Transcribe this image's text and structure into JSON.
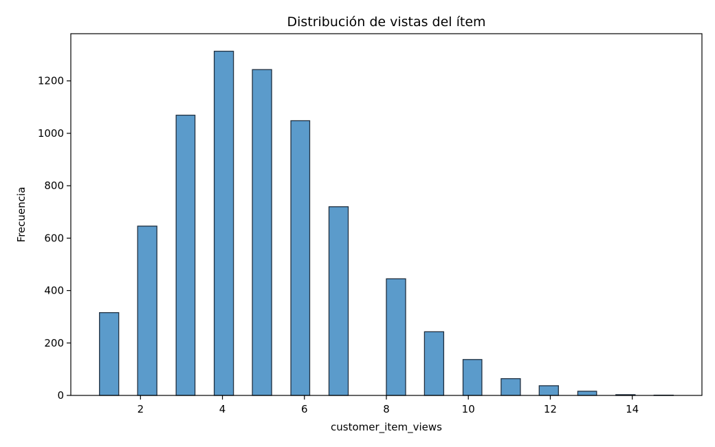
{
  "chart_data": {
    "type": "bar",
    "title": "Distribución de vistas del ítem",
    "xlabel": "customer_item_views",
    "ylabel": "Frecuencia",
    "xlim": [
      0.3,
      15.7
    ],
    "ylim": [
      0,
      1380
    ],
    "grid": false,
    "legend": "none",
    "bar_color": "#5b9bcb",
    "edge_color": "#1f2f3f",
    "xticks": [
      2,
      4,
      6,
      8,
      10,
      12,
      14
    ],
    "yticks": [
      0,
      200,
      400,
      600,
      800,
      1000,
      1200
    ],
    "bins": [
      {
        "x0": 1.0,
        "x1": 1.47,
        "value": 316
      },
      {
        "x0": 1.93,
        "x1": 2.4,
        "value": 646
      },
      {
        "x0": 2.87,
        "x1": 3.33,
        "value": 1069
      },
      {
        "x0": 3.8,
        "x1": 4.27,
        "value": 1313
      },
      {
        "x0": 4.73,
        "x1": 5.2,
        "value": 1243
      },
      {
        "x0": 5.67,
        "x1": 6.13,
        "value": 1048
      },
      {
        "x0": 6.6,
        "x1": 7.07,
        "value": 720
      },
      {
        "x0": 7.53,
        "x1": 8.0,
        "value": 0
      },
      {
        "x0": 8.0,
        "x1": 8.47,
        "value": 445
      },
      {
        "x0": 8.93,
        "x1": 9.4,
        "value": 243
      },
      {
        "x0": 9.87,
        "x1": 10.33,
        "value": 137
      },
      {
        "x0": 10.8,
        "x1": 11.27,
        "value": 64
      },
      {
        "x0": 11.73,
        "x1": 12.2,
        "value": 37
      },
      {
        "x0": 12.67,
        "x1": 13.13,
        "value": 16
      },
      {
        "x0": 13.6,
        "x1": 14.07,
        "value": 3
      },
      {
        "x0": 14.53,
        "x1": 15.0,
        "value": 1
      }
    ]
  }
}
